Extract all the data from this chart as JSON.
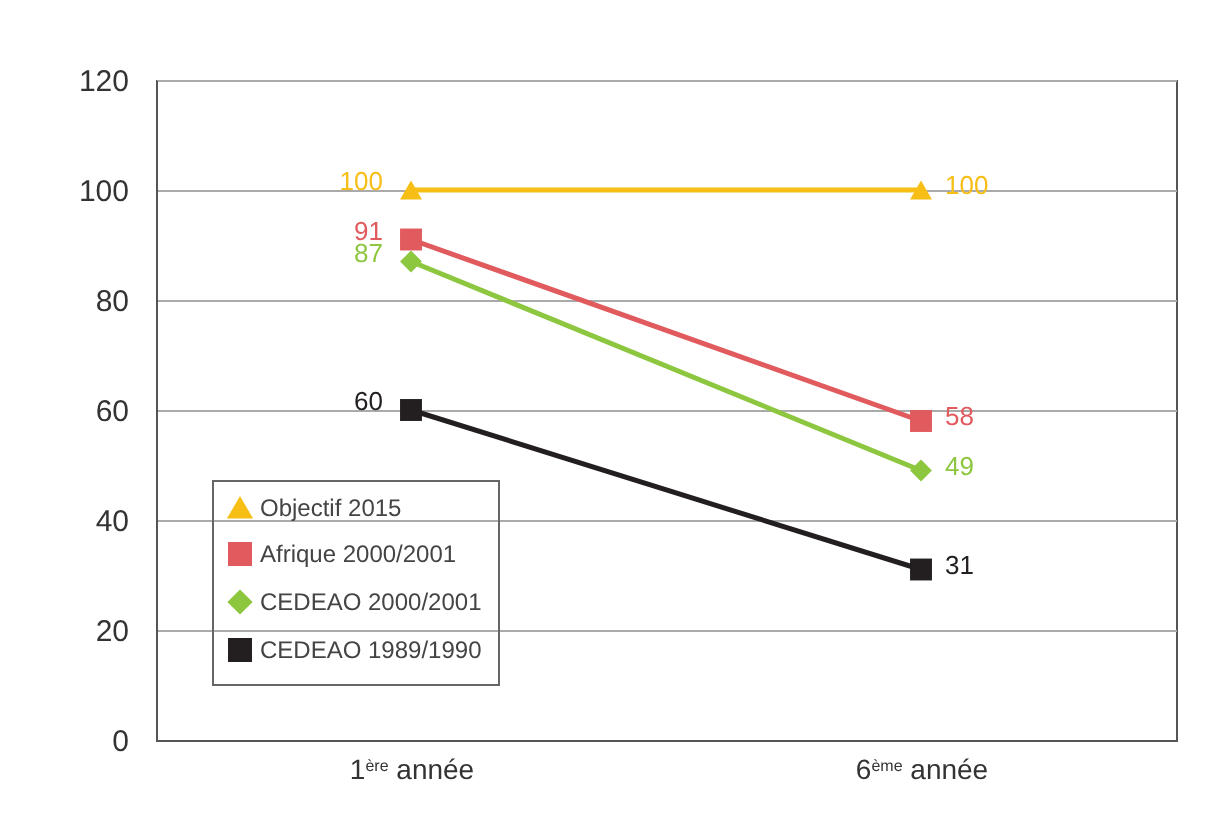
{
  "chart_data": {
    "type": "line",
    "categories": [
      "1$^{ère}$ année",
      "6$^{ème}$ année"
    ],
    "series": [
      {
        "name": "Objectif 2015",
        "color": "#f7be16",
        "marker": "triangle",
        "values": [
          100,
          100
        ]
      },
      {
        "name": "Afrique 2000/2001",
        "color": "#e05a5e",
        "marker": "square",
        "values": [
          91,
          58
        ]
      },
      {
        "name": "CEDEAO 2000/2001",
        "color": "#8dc63f",
        "marker": "diamond",
        "values": [
          87,
          49
        ]
      },
      {
        "name": "CEDEAO 1989/1990",
        "color": "#231f20",
        "marker": "square",
        "values": [
          60,
          31
        ]
      }
    ],
    "ylim": [
      0,
      120
    ],
    "yticks": [
      0,
      20,
      40,
      60,
      80,
      100,
      120
    ],
    "grid": "y",
    "legend": "bottom left",
    "data_labels": true
  }
}
